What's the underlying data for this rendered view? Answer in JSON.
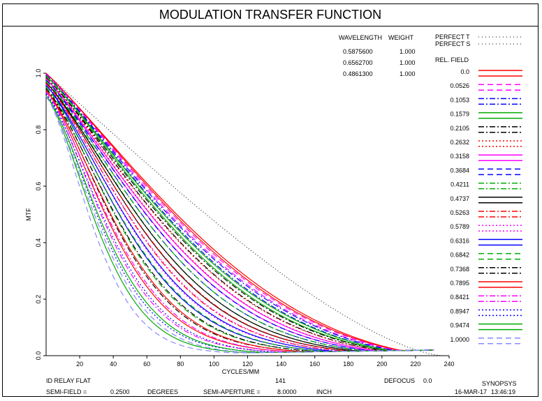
{
  "chart_data": {
    "type": "line",
    "title": "MODULATION TRANSFER FUNCTION",
    "xlabel": "CYCLES/MM",
    "ylabel": "MTF",
    "xlim": [
      0,
      240
    ],
    "ylim": [
      0,
      1.0
    ],
    "x_ticks": [
      "20",
      "40",
      "60",
      "80",
      "100",
      "120",
      "140",
      "160",
      "180",
      "200",
      "220",
      "240"
    ],
    "y_ticks": [
      "0.0",
      "0.2",
      "0.4",
      "0.6",
      "0.8",
      "1.0"
    ],
    "wavelength_table": {
      "headers": [
        "WAVELENGTH",
        "WEIGHT"
      ],
      "rows": [
        {
          "wavelength": "0.5875600",
          "weight": "1.000"
        },
        {
          "wavelength": "0.6562700",
          "weight": "1.000"
        },
        {
          "wavelength": "0.4861300",
          "weight": "1.000"
        }
      ]
    },
    "perfect_labels": [
      "PERFECT T",
      "PERFECT S"
    ],
    "rel_field_header": "REL. FIELD",
    "fields": [
      {
        "label": "0.0",
        "color": "#ff0000",
        "dash": "solid",
        "end": 0.02,
        "mid": 0.33
      },
      {
        "label": "0.0526",
        "color": "#ff00ff",
        "dash": "dash",
        "end": 0.02,
        "mid": 0.32
      },
      {
        "label": "0.1053",
        "color": "#0000ff",
        "dash": "dashdot",
        "end": 0.02,
        "mid": 0.31
      },
      {
        "label": "0.1579",
        "color": "#00aa00",
        "dash": "solid",
        "end": 0.02,
        "mid": 0.3
      },
      {
        "label": "0.2105",
        "color": "#000000",
        "dash": "dashdot",
        "end": 0.02,
        "mid": 0.28
      },
      {
        "label": "0.2632",
        "color": "#ff0000",
        "dash": "dot",
        "end": 0.02,
        "mid": 0.27
      },
      {
        "label": "0.3158",
        "color": "#ff00ff",
        "dash": "solid",
        "end": 0.02,
        "mid": 0.26
      },
      {
        "label": "0.3684",
        "color": "#0000ff",
        "dash": "dash",
        "end": 0.02,
        "mid": 0.25
      },
      {
        "label": "0.4211",
        "color": "#00aa00",
        "dash": "dashdot",
        "end": 0.02,
        "mid": 0.24
      },
      {
        "label": "0.4737",
        "color": "#000000",
        "dash": "solid",
        "end": 0.02,
        "mid": 0.22
      },
      {
        "label": "0.5263",
        "color": "#ff0000",
        "dash": "dashdot",
        "end": 0.02,
        "mid": 0.21
      },
      {
        "label": "0.5789",
        "color": "#ff00ff",
        "dash": "dot",
        "end": 0.02,
        "mid": 0.2
      },
      {
        "label": "0.6316",
        "color": "#0000ff",
        "dash": "solid",
        "end": 0.02,
        "mid": 0.19
      },
      {
        "label": "0.6842",
        "color": "#00aa00",
        "dash": "dash",
        "end": 0.02,
        "mid": 0.17
      },
      {
        "label": "0.7368",
        "color": "#000000",
        "dash": "dashdot",
        "end": 0.02,
        "mid": 0.15
      },
      {
        "label": "0.7895",
        "color": "#ff0000",
        "dash": "solid",
        "end": 0.02,
        "mid": 0.13
      },
      {
        "label": "0.8421",
        "color": "#ff00ff",
        "dash": "dashdot",
        "end": 0.02,
        "mid": 0.11
      },
      {
        "label": "0.8947",
        "color": "#0000ff",
        "dash": "dot",
        "end": 0.02,
        "mid": 0.09
      },
      {
        "label": "0.9474",
        "color": "#00aa00",
        "dash": "solid",
        "end": 0.02,
        "mid": 0.07
      },
      {
        "label": "1.0000",
        "color": "#8888ff",
        "dash": "dash",
        "end": 0.02,
        "mid": 0.06
      }
    ]
  },
  "footer": {
    "lens_name": "ID RELAY FLAT",
    "number": "141",
    "defocus_label": "DEFOCUS",
    "defocus_value": "0.0",
    "program": "SYNOPSYS",
    "semi_field_label": "SEMI-FIELD =",
    "semi_field_value": "0.2500",
    "semi_field_unit": "DEGREES",
    "semi_aperture_label": "SEMI-APERTURE =",
    "semi_aperture_value": "8.0000",
    "semi_aperture_unit": "INCH",
    "date": "16-MAR-17",
    "time": "13:46:19"
  }
}
